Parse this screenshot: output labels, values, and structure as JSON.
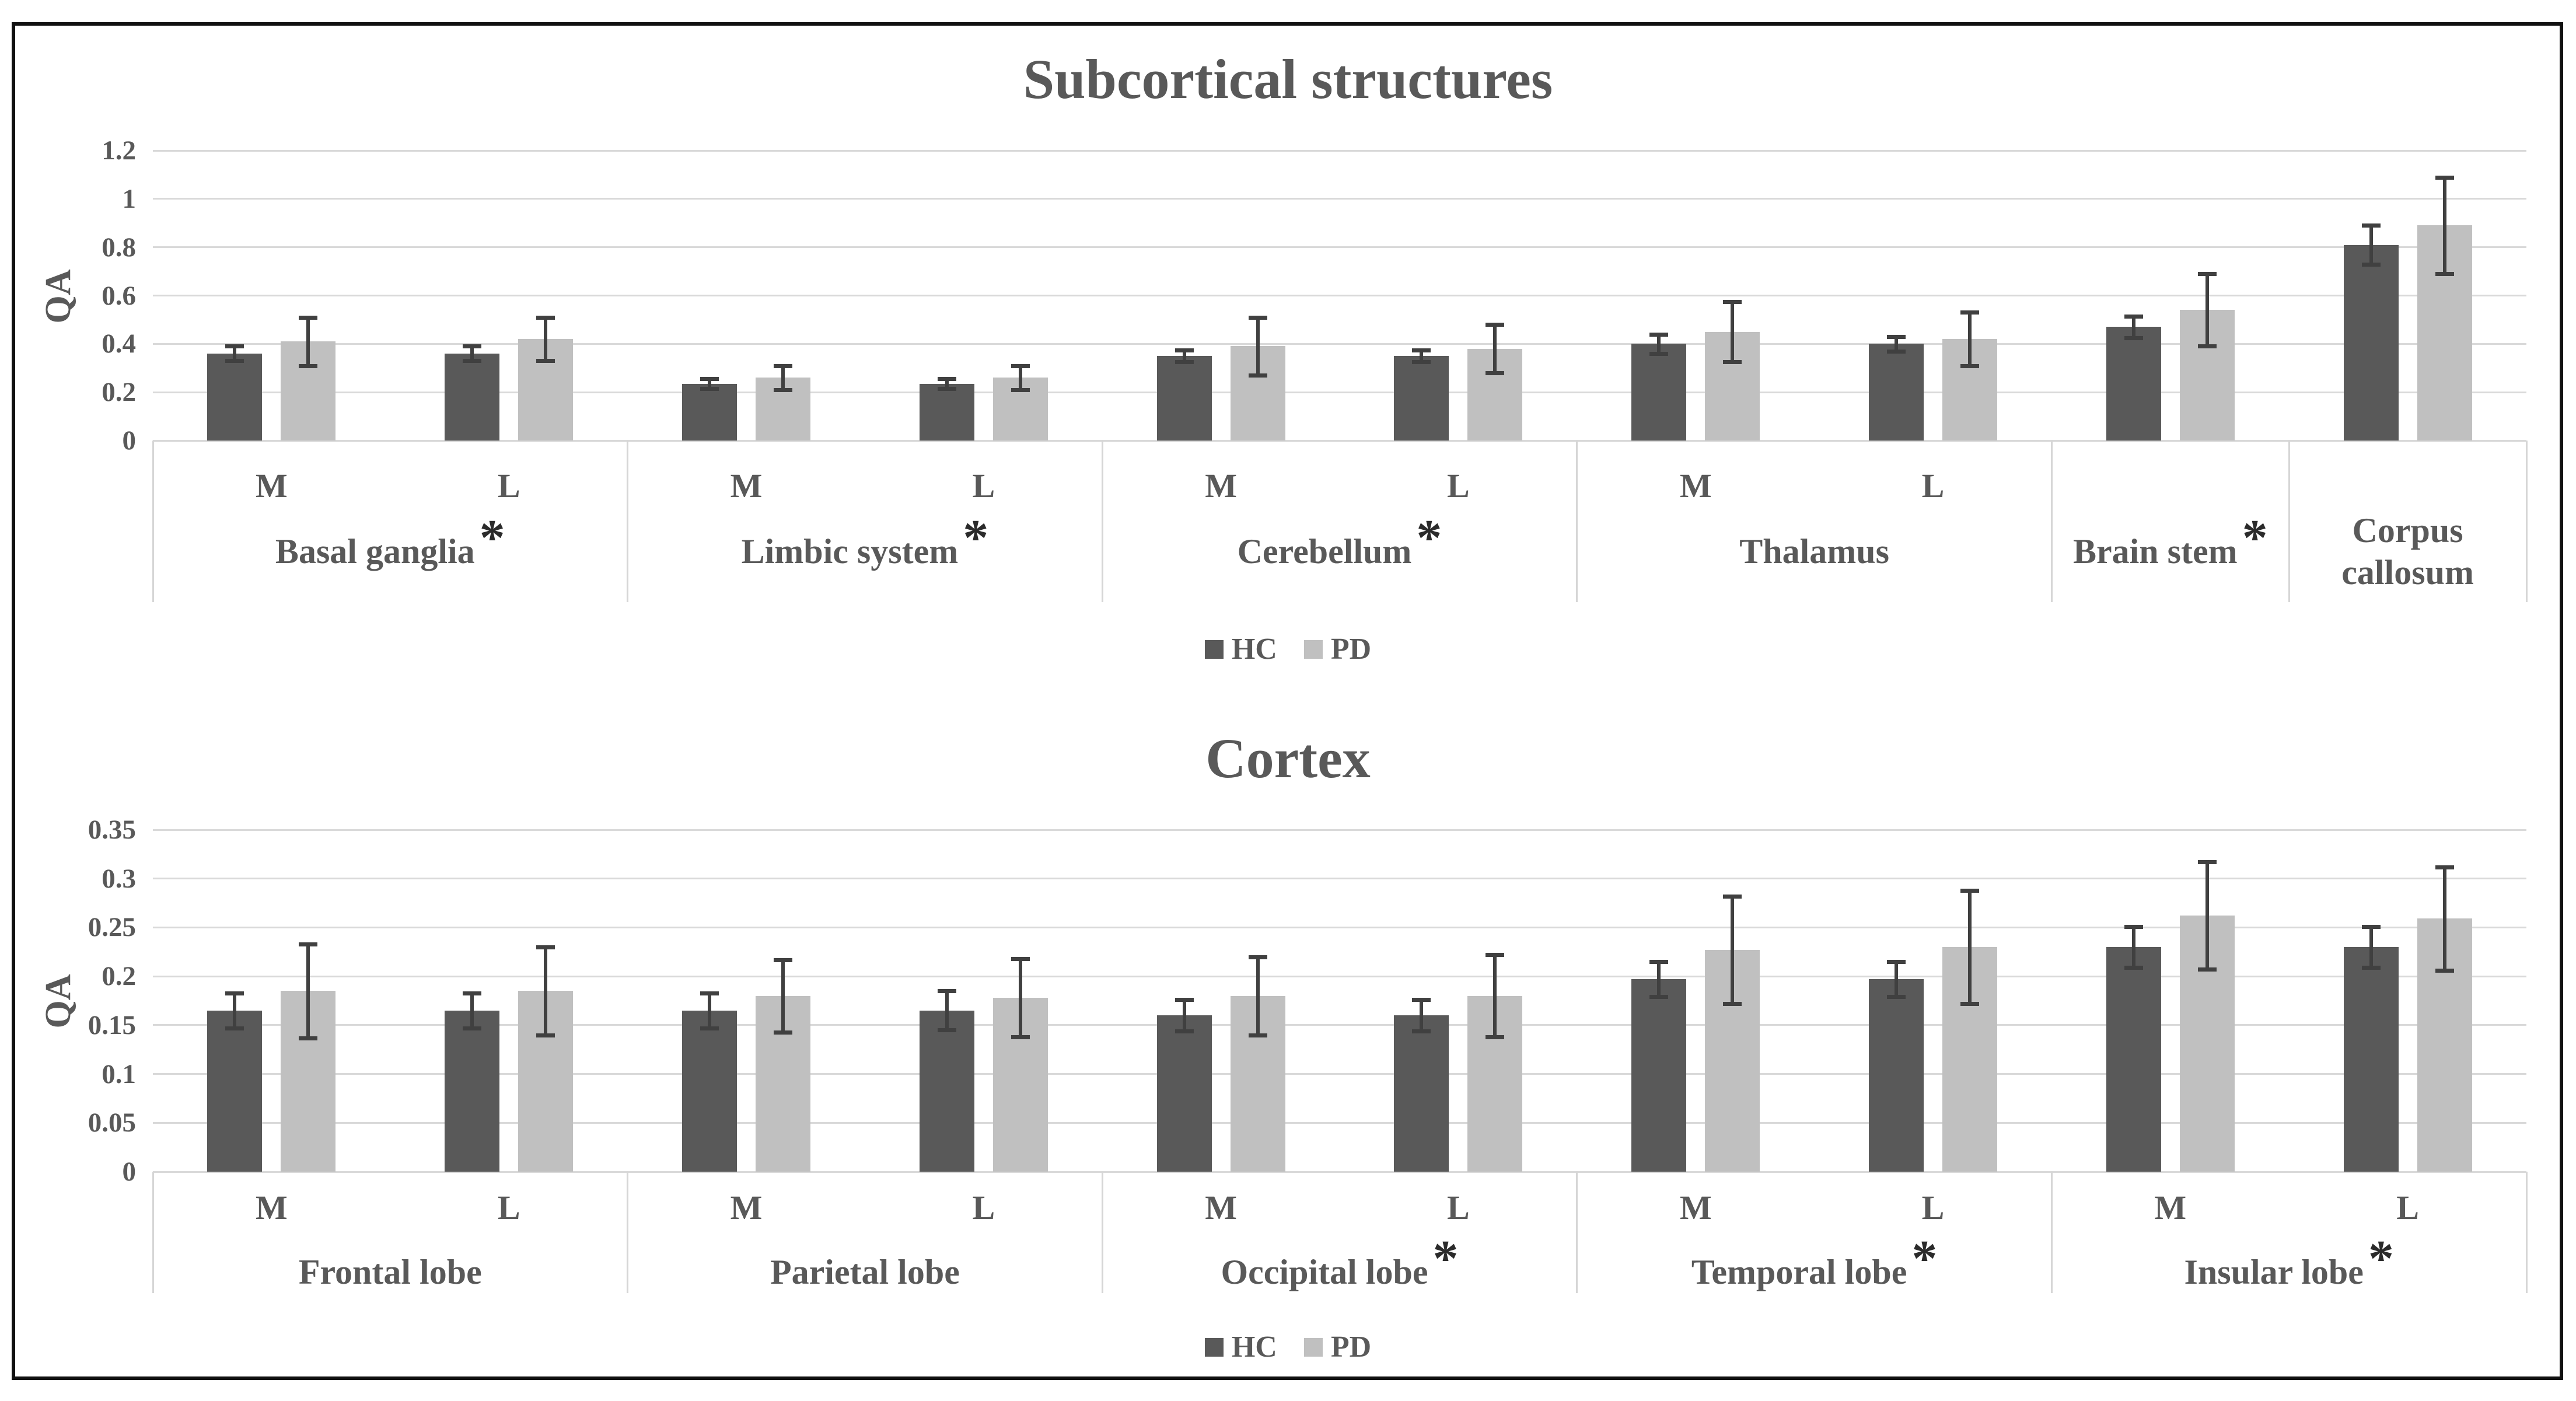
{
  "colors": {
    "hc_bar": "#595959",
    "pd_bar": "#c0c0c0",
    "gridline": "#d9d9d9",
    "divider": "#d6d6d6",
    "error_bar": "#404040",
    "text": "#595959",
    "frame_border": "#111111"
  },
  "chart_data": [
    {
      "type": "bar",
      "title": "Subcortical structures",
      "xlabel": "",
      "ylabel": "QA",
      "ylim": [
        0,
        1.2
      ],
      "grid": true,
      "legend_position": "bottom",
      "yticks": [
        {
          "v": 0,
          "t": "0"
        },
        {
          "v": 0.2,
          "t": "0.2"
        },
        {
          "v": 0.4,
          "t": "0.4"
        },
        {
          "v": 0.6,
          "t": "0.6"
        },
        {
          "v": 0.8,
          "t": "0.8"
        },
        {
          "v": 1.0,
          "t": "1"
        },
        {
          "v": 1.2,
          "t": "1.2"
        }
      ],
      "legend": [
        "HC",
        "PD"
      ],
      "groups": [
        {
          "label": "Basal ganglia",
          "asterisk": true,
          "subs": [
            "M",
            "L"
          ]
        },
        {
          "label": "Limbic system",
          "asterisk": true,
          "subs": [
            "M",
            "L"
          ]
        },
        {
          "label": "Cerebellum",
          "asterisk": true,
          "subs": [
            "M",
            "L"
          ]
        },
        {
          "label": "Thalamus",
          "asterisk": false,
          "subs": [
            "M",
            "L"
          ]
        },
        {
          "label": "Brain stem",
          "asterisk": true,
          "subs": [
            ""
          ]
        },
        {
          "label": "Corpus callosum",
          "asterisk": false,
          "subs": [
            ""
          ]
        }
      ],
      "series": [
        {
          "name": "HC",
          "color_key": "hc_bar",
          "values": [
            0.36,
            0.36,
            0.235,
            0.235,
            0.35,
            0.35,
            0.4,
            0.4,
            0.47,
            0.81
          ],
          "errors": [
            0.03,
            0.03,
            0.02,
            0.02,
            0.025,
            0.025,
            0.04,
            0.03,
            0.045,
            0.08
          ]
        },
        {
          "name": "PD",
          "color_key": "pd_bar",
          "values": [
            0.41,
            0.42,
            0.26,
            0.26,
            0.39,
            0.38,
            0.45,
            0.42,
            0.54,
            0.89
          ],
          "errors": [
            0.1,
            0.09,
            0.05,
            0.05,
            0.12,
            0.1,
            0.125,
            0.11,
            0.15,
            0.2
          ]
        }
      ]
    },
    {
      "type": "bar",
      "title": "Cortex",
      "xlabel": "",
      "ylabel": "QA",
      "ylim": [
        0,
        0.35
      ],
      "grid": true,
      "legend_position": "bottom",
      "yticks": [
        {
          "v": 0,
          "t": "0"
        },
        {
          "v": 0.05,
          "t": "0.05"
        },
        {
          "v": 0.1,
          "t": "0.1"
        },
        {
          "v": 0.15,
          "t": "0.15"
        },
        {
          "v": 0.2,
          "t": "0.2"
        },
        {
          "v": 0.25,
          "t": "0.25"
        },
        {
          "v": 0.3,
          "t": "0.3"
        },
        {
          "v": 0.35,
          "t": "0.35"
        }
      ],
      "legend": [
        "HC",
        "PD"
      ],
      "groups": [
        {
          "label": "Frontal lobe",
          "asterisk": false,
          "subs": [
            "M",
            "L"
          ]
        },
        {
          "label": "Parietal lobe",
          "asterisk": false,
          "subs": [
            "M",
            "L"
          ]
        },
        {
          "label": "Occipital lobe",
          "asterisk": true,
          "subs": [
            "M",
            "L"
          ]
        },
        {
          "label": "Temporal lobe",
          "asterisk": true,
          "subs": [
            "M",
            "L"
          ]
        },
        {
          "label": "Insular lobe",
          "asterisk": true,
          "subs": [
            "M",
            "L"
          ]
        }
      ],
      "series": [
        {
          "name": "HC",
          "color_key": "hc_bar",
          "values": [
            0.165,
            0.165,
            0.165,
            0.165,
            0.16,
            0.16,
            0.197,
            0.197,
            0.23,
            0.23
          ],
          "errors": [
            0.018,
            0.018,
            0.018,
            0.02,
            0.016,
            0.016,
            0.018,
            0.018,
            0.021,
            0.021
          ]
        },
        {
          "name": "PD",
          "color_key": "pd_bar",
          "values": [
            0.185,
            0.185,
            0.18,
            0.178,
            0.18,
            0.18,
            0.227,
            0.23,
            0.262,
            0.259
          ],
          "errors": [
            0.048,
            0.045,
            0.037,
            0.04,
            0.04,
            0.042,
            0.055,
            0.058,
            0.055,
            0.053
          ]
        }
      ]
    }
  ]
}
